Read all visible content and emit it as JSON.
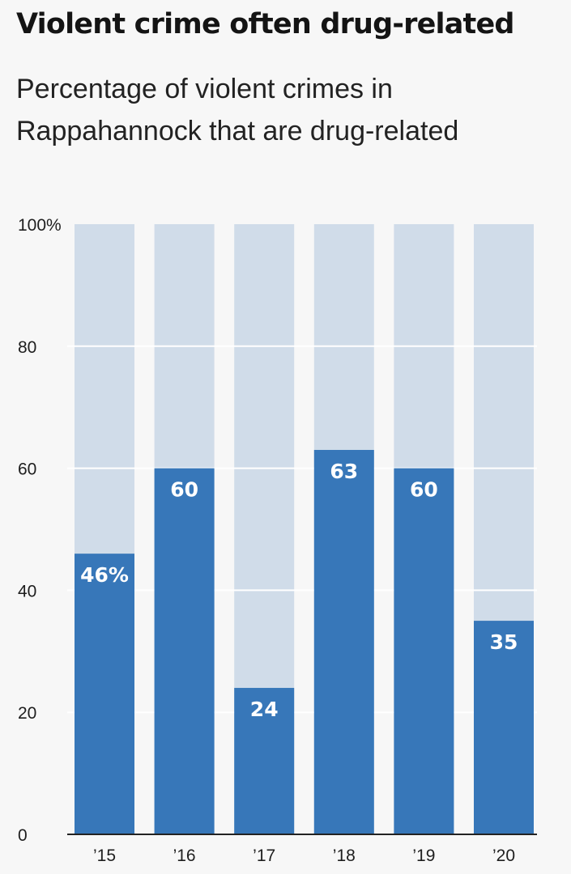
{
  "chart_data": {
    "type": "bar",
    "title": "Violent crime often drug-related",
    "subtitle": "Percentage of violent crimes in Rappahannock that are drug-related",
    "categories": [
      "’15",
      "’16",
      "’17",
      "’18",
      "’19",
      "’20"
    ],
    "values": [
      46,
      60,
      24,
      63,
      60,
      35
    ],
    "value_labels": [
      "46%",
      "60",
      "24",
      "63",
      "60",
      "35"
    ],
    "ylim": [
      0,
      100
    ],
    "yticks": [
      0,
      20,
      40,
      60,
      80,
      100
    ],
    "ytick_labels": [
      "0",
      "20",
      "40",
      "60",
      "80",
      "100%"
    ],
    "xlabel": "",
    "ylabel": "",
    "stacked_background_to": 100,
    "grid": true,
    "colors": {
      "bar": "#3777b9",
      "background_bar": "#d0dce9",
      "gridline": "#ffffff",
      "axis": "#222222",
      "label": "#ffffff"
    }
  }
}
